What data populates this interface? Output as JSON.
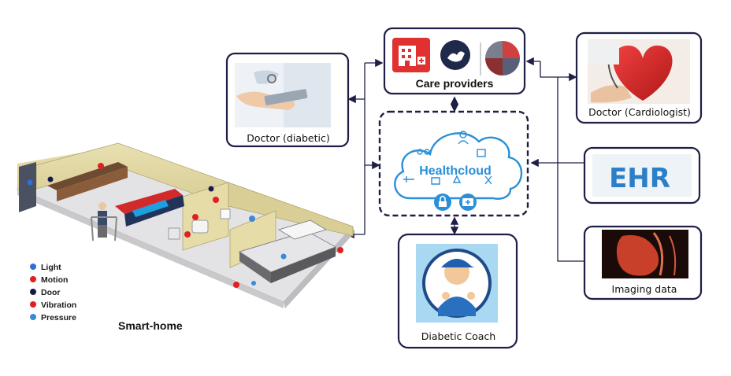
{
  "nodes": {
    "care_providers": {
      "label": "Care providers"
    },
    "doctor_diabetic": {
      "label": "Doctor (diabetic)"
    },
    "doctor_cardiologist": {
      "label": "Doctor (Cardiologist)"
    },
    "healthcloud": {
      "label": "Healthcloud"
    },
    "ehr": {
      "label": "EHR"
    },
    "imaging": {
      "label": "Imaging data"
    },
    "coach": {
      "label": "Diabetic Coach"
    },
    "smart_home": {
      "label": "Smart-home"
    }
  },
  "legend": [
    {
      "label": "Light",
      "color": "#2f6fd6"
    },
    {
      "label": "Motion",
      "color": "#e02020"
    },
    {
      "label": "Door",
      "color": "#1a1a4a"
    },
    {
      "label": "Vibration",
      "color": "#e02020"
    },
    {
      "label": "Pressure",
      "color": "#3a8ad8"
    }
  ],
  "colors": {
    "border": "#1e1e46",
    "cloud": "#2a8fd6",
    "arrow": "#1e1e46",
    "accent_red": "#e03030"
  }
}
